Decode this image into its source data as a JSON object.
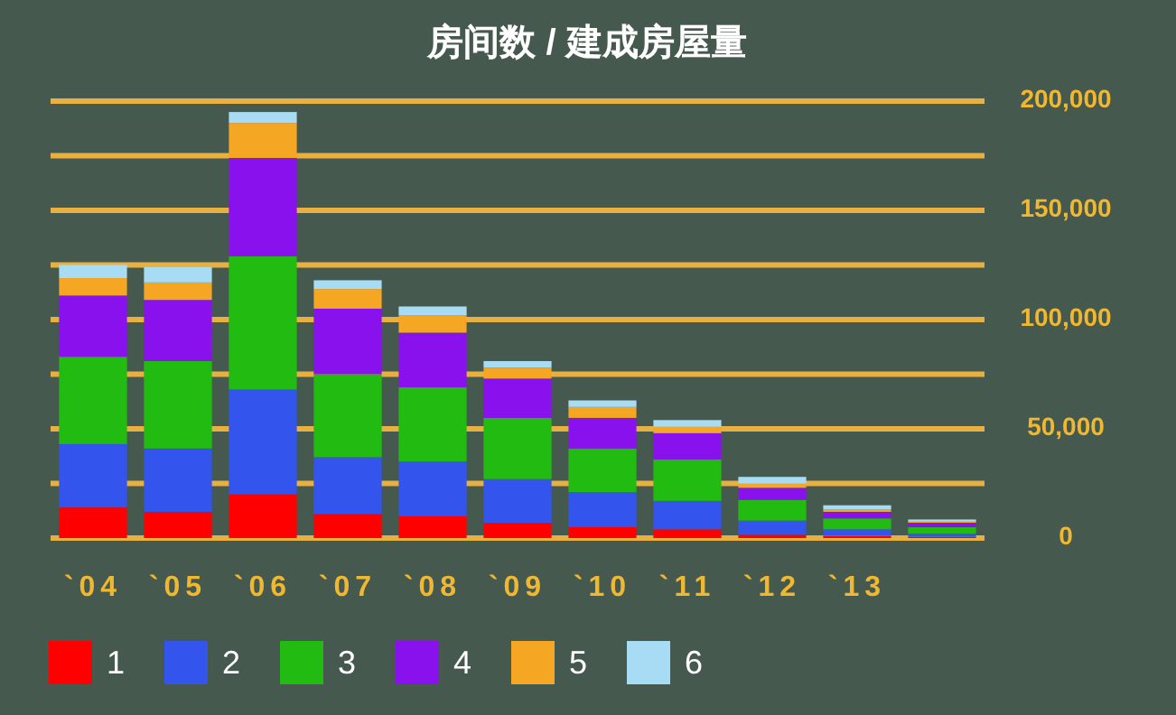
{
  "chart_data": {
    "type": "bar",
    "title": "房间数 / 建成房屋量",
    "stacked": true,
    "grid": "y",
    "legend": "bottom",
    "categories": [
      "`04",
      "`05",
      "`06",
      "`07",
      "`08",
      "`09",
      "`10",
      "`11",
      "`12",
      "`13",
      null
    ],
    "ylim": [
      0,
      200000
    ],
    "yticks": [
      0,
      {
        "value": 25000,
        "label": null
      },
      {
        "value": 50000,
        "label": "50,000"
      },
      {
        "value": 75000,
        "label": null
      },
      {
        "value": 100000,
        "label": "100,000"
      },
      {
        "value": 125000,
        "label": null
      },
      {
        "value": 150000,
        "label": "150,000"
      },
      {
        "value": 175000,
        "label": null
      },
      {
        "value": 200000,
        "label": "200,000"
      }
    ],
    "series": [
      {
        "name": "1",
        "color": "#ff0000",
        "values": [
          14000,
          12000,
          20000,
          11000,
          10000,
          7000,
          5000,
          4000,
          1500,
          1000,
          500
        ]
      },
      {
        "name": "2",
        "color": "#3355ee",
        "values": [
          29000,
          29000,
          48000,
          26000,
          25000,
          20000,
          16000,
          13000,
          6500,
          3000,
          1500
        ]
      },
      {
        "name": "3",
        "color": "#22bb11",
        "values": [
          40000,
          40000,
          61000,
          38000,
          34000,
          28000,
          20000,
          19000,
          9500,
          5000,
          3000
        ]
      },
      {
        "name": "4",
        "color": "#8811ee",
        "values": [
          28000,
          28000,
          45000,
          30000,
          25000,
          18000,
          14000,
          12000,
          5500,
          3000,
          2000
        ]
      },
      {
        "name": "5",
        "color": "#f5a623",
        "values": [
          8000,
          8000,
          16000,
          9000,
          8000,
          5000,
          5000,
          3000,
          2000,
          1000,
          500
        ]
      },
      {
        "name": "6",
        "color": "#a8dcf5",
        "values": [
          6000,
          7000,
          5000,
          4000,
          4000,
          3000,
          3000,
          3000,
          3000,
          2000,
          1000
        ]
      }
    ]
  }
}
